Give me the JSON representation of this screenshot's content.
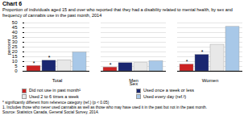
{
  "chart_data": {
    "type": "bar",
    "title": "Chart 6",
    "subtitle": "Proportion of individuals aged 15 and over who reported that they had a disability related to mental health, by sex and frequency of cannabis use in the past month, 2014",
    "xlabel": "Sex",
    "ylabel": "percent",
    "categories": [
      "Total",
      "Men",
      "Women"
    ],
    "series": [
      {
        "name": "Did not use in past month¹",
        "color": "#cc2222",
        "values": [
          5.5,
          4.0,
          7.0
        ],
        "annotated": [
          true,
          true,
          true
        ]
      },
      {
        "name": "Used once a week or less",
        "color": "#1a2670",
        "values": [
          11.0,
          8.5,
          17.0
        ],
        "annotated": [
          true,
          false,
          true
        ]
      },
      {
        "name": "Used 2 to 6 times a week",
        "color": "#e8e8e8",
        "values": [
          11.5,
          8.5,
          27.5
        ],
        "annotated": [
          false,
          false,
          false
        ]
      },
      {
        "name": "Used every day (ref.²)",
        "color": "#a8c8e8",
        "values": [
          19.5,
          10.5,
          46.0
        ],
        "annotated": [
          false,
          false,
          false
        ]
      }
    ],
    "annotation": "*",
    "ylim": [
      0,
      50
    ],
    "yticks": [
      0,
      5,
      10,
      15,
      20,
      25,
      30,
      35,
      40,
      45,
      50
    ],
    "grid": true,
    "legend": "bottom",
    "footnotes": [
      "* significantly different from reference category (ref.) (p < 0.05)",
      "1. Includes those who never used cannabis as well as those who may have used it in the past but not in the past month.",
      "Source: Statistics Canada, General Social Survey, 2014."
    ]
  }
}
